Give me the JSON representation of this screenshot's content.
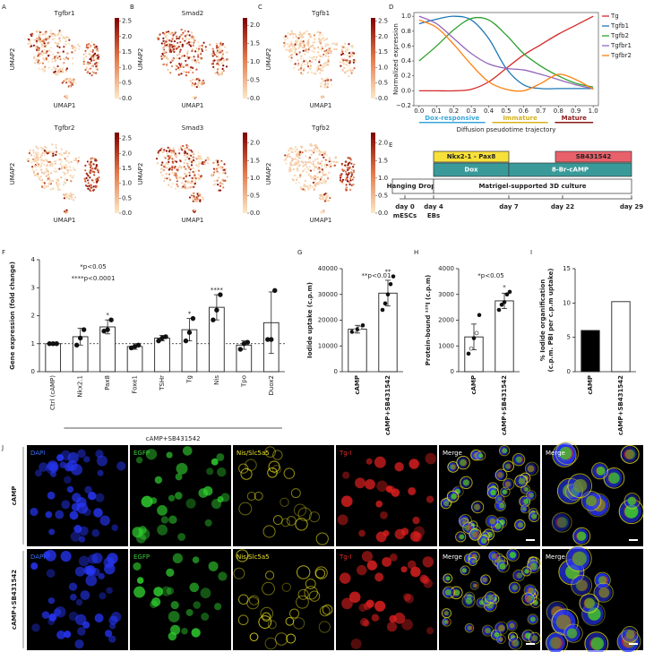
{
  "panel_labels": [
    "A",
    "B",
    "C",
    "D",
    "E",
    "F",
    "G",
    "H",
    "I",
    "J"
  ],
  "chart_data": [
    {
      "type": "embedding",
      "title": "Tgfbr1",
      "xlabel": "UMAP1",
      "ylabel": "UMAP2",
      "clim": [
        0,
        2.6
      ],
      "cticks": [
        {
          "value": 0,
          "label": "0.0"
        },
        0.5,
        {
          "value": 1,
          "label": "1.0"
        },
        1.5,
        {
          "value": 2,
          "label": "2.0"
        },
        2.5
      ]
    },
    {
      "type": "embedding",
      "title": "Smad2",
      "xlabel": "UMAP1",
      "ylabel": "UMAP2",
      "clim": [
        0,
        2.2
      ],
      "cticks": [
        {
          "value": 0,
          "label": "0.0"
        },
        0.5,
        {
          "value": 1,
          "label": "1.0"
        },
        1.5,
        {
          "value": 2,
          "label": "2.0"
        }
      ]
    },
    {
      "type": "embedding",
      "title": "Tgfb1",
      "xlabel": "UMAP1",
      "ylabel": "UMAP2",
      "clim": [
        0,
        2.6
      ],
      "cticks": [
        {
          "value": 0,
          "label": "0.0"
        },
        0.5,
        {
          "value": 1,
          "label": "1.0"
        },
        1.5,
        {
          "value": 2,
          "label": "2.0"
        },
        2.5
      ]
    },
    {
      "type": "embedding",
      "title": "Tgfbr2",
      "xlabel": "UMAP1",
      "ylabel": "UMAP2",
      "clim": [
        0,
        2.7
      ],
      "cticks": [
        {
          "value": 0,
          "label": "0.0"
        },
        0.5,
        {
          "value": 1,
          "label": "1.0"
        },
        1.5,
        {
          "value": 2,
          "label": "2.0"
        },
        2.5
      ]
    },
    {
      "type": "embedding",
      "title": "Smad3",
      "xlabel": "UMAP1",
      "ylabel": "UMAP2",
      "clim": [
        0,
        2.3
      ],
      "cticks": [
        {
          "value": 0,
          "label": "0.0"
        },
        0.5,
        {
          "value": 1,
          "label": "1.0"
        },
        1.5,
        {
          "value": 2,
          "label": "2.0"
        }
      ]
    },
    {
      "type": "embedding",
      "title": "Tgfb2",
      "xlabel": "UMAP1",
      "ylabel": "UMAP2",
      "clim": [
        0,
        2.3
      ],
      "cticks": [
        {
          "value": 0,
          "label": "0.0"
        },
        0.5,
        {
          "value": 1,
          "label": "1.0"
        },
        1.5,
        {
          "value": 2,
          "label": "2.0"
        }
      ]
    },
    {
      "type": "line",
      "xlabel": "Diffusion pseudotime trajectory",
      "ylabel": "Normalized expression",
      "x": [
        0,
        0.1,
        0.2,
        0.3,
        0.4,
        0.5,
        0.6,
        0.7,
        0.8,
        0.9,
        1.0
      ],
      "xlim": [
        -0.03,
        1.03
      ],
      "ylim": [
        -0.2,
        1.05
      ],
      "xticks": [
        {
          "value": 0,
          "label": "0.0"
        },
        0.1,
        0.2,
        0.3,
        0.4,
        0.5,
        0.6,
        0.7,
        0.8,
        0.9,
        {
          "value": 1,
          "label": "1.0"
        }
      ],
      "yticks": [
        {
          "value": -0.2,
          "label": "−0.2"
        },
        {
          "value": 0,
          "label": "0.0"
        },
        0.2,
        0.4,
        0.6,
        0.8,
        {
          "value": 1,
          "label": "1.0"
        }
      ],
      "series": [
        {
          "name": "Tg",
          "color": "#d62728",
          "values": [
            0.0,
            0.0,
            0.0,
            0.02,
            0.12,
            0.3,
            0.48,
            0.62,
            0.76,
            0.88,
            1.0
          ]
        },
        {
          "name": "Tgfb1",
          "color": "#1f77b4",
          "values": [
            0.9,
            0.96,
            1.0,
            0.95,
            0.7,
            0.3,
            0.08,
            0.03,
            0.03,
            0.03,
            0.03
          ]
        },
        {
          "name": "Tgfb2",
          "color": "#2ca02c",
          "values": [
            0.4,
            0.6,
            0.82,
            0.97,
            0.95,
            0.75,
            0.5,
            0.33,
            0.2,
            0.1,
            0.05
          ]
        },
        {
          "name": "Tgfbr1",
          "color": "#9467bd",
          "values": [
            1.0,
            0.9,
            0.7,
            0.5,
            0.36,
            0.3,
            0.28,
            0.22,
            0.15,
            0.08,
            0.03
          ]
        },
        {
          "name": "Tgfbr2",
          "color": "#ff7f0e",
          "values": [
            0.95,
            0.85,
            0.62,
            0.35,
            0.12,
            0.02,
            0.0,
            0.1,
            0.22,
            0.15,
            0.02
          ]
        }
      ],
      "phases": [
        {
          "name": "Dox-responsive",
          "color": "#3aa6d8",
          "x": [
            0,
            0.38
          ]
        },
        {
          "name": "Immature",
          "color": "#d4b21c",
          "x": [
            0.42,
            0.74
          ]
        },
        {
          "name": "Mature",
          "color": "#8b1a1a",
          "x": [
            0.78,
            1.0
          ]
        }
      ]
    },
    {
      "type": "bar",
      "ylabel": "Gene expression (fold change)",
      "categories": [
        "Ctrl (cAMP)",
        "Nkx2.1",
        "Pax8",
        "Foxe1",
        "TSHr",
        "Tg",
        "Nis",
        "Tpo",
        "Duox2"
      ],
      "values": [
        1.0,
        1.25,
        1.6,
        0.9,
        1.2,
        1.5,
        2.3,
        0.95,
        1.75
      ],
      "errors": [
        0.05,
        0.3,
        0.25,
        0.1,
        0.1,
        0.4,
        0.45,
        0.15,
        1.1
      ],
      "points": [
        [
          1,
          1,
          1
        ],
        [
          0.95,
          1.2,
          1.5
        ],
        [
          1.45,
          1.5,
          1.85
        ],
        [
          0.85,
          0.9,
          0.95
        ],
        [
          1.1,
          1.2,
          1.25
        ],
        [
          1.1,
          1.4,
          1.9
        ],
        [
          1.85,
          2.2,
          2.75
        ],
        [
          0.8,
          1.0,
          1.05
        ],
        [
          1.15,
          1.15,
          2.9
        ]
      ],
      "colors": [
        "#ffffff",
        "#ffffff",
        "#ffffff",
        "#ffffff",
        "#ffffff",
        "#ffffff",
        "#ffffff",
        "#ffffff",
        "#ffffff"
      ],
      "stars": [
        null,
        null,
        "*",
        null,
        null,
        "*",
        "****",
        null,
        null
      ],
      "notes": [
        "*p<0.05",
        "****p<0.0001"
      ],
      "refline": 1,
      "group_label": "cAMP+SB431542",
      "ylim": [
        0,
        4
      ],
      "yticks": [
        0,
        1,
        2,
        3,
        4
      ]
    },
    {
      "type": "bar",
      "ylabel": [
        "Iodide uptake (c.p.m)"
      ],
      "categories": [
        "cAMP",
        "cAMP+SB431542"
      ],
      "values": [
        16500,
        30500
      ],
      "errors": [
        1500,
        5000
      ],
      "points": [
        [
          15500,
          16000,
          16500,
          17000,
          18000
        ],
        [
          24000,
          26500,
          30000,
          34000,
          37000
        ]
      ],
      "colors": [
        "#ffffff",
        "#ffffff"
      ],
      "stars": [
        null,
        "**"
      ],
      "notes": [
        "**p<0.01"
      ],
      "ylim": [
        0,
        40000
      ],
      "yticks": [
        0,
        10000,
        20000,
        30000,
        40000
      ]
    },
    {
      "type": "bar",
      "ylabel": [
        "Protein-bound ¹²⁵I (c.p.m)"
      ],
      "categories": [
        "cAMP",
        "cAMP+SB431542"
      ],
      "values": [
        1350,
        2750
      ],
      "errors": [
        500,
        300
      ],
      "points": [
        [
          700,
          900,
          1300,
          1500,
          2200
        ],
        [
          2400,
          2600,
          2700,
          3000,
          3100
        ]
      ],
      "colors": [
        "#ffffff",
        "#ffffff"
      ],
      "stars": [
        null,
        "*"
      ],
      "notes": [
        "*p<0.05"
      ],
      "ylim": [
        0,
        4000
      ],
      "yticks": [
        0,
        1000,
        2000,
        3000,
        4000
      ]
    },
    {
      "type": "bar",
      "ylabel": [
        "% Iodide organification",
        "(c.p.m. PBI per c.p.m uptake)"
      ],
      "categories": [
        "cAMP",
        "cAMP+SB431542"
      ],
      "values": [
        6.0,
        10.2
      ],
      "colors": [
        "#000000",
        "#ffffff"
      ],
      "ylim": [
        0,
        15
      ],
      "yticks": [
        0,
        5,
        10,
        15
      ]
    }
  ],
  "timeline": {
    "boxes": [
      "Nkx2-1 - Pax8",
      "SB431542",
      "Dox",
      "8-Br-cAMP",
      "Hanging Drops",
      "Matrigel-supported 3D culture"
    ],
    "days": [
      "day 0",
      "day 4",
      "day 7",
      "day 22",
      "day 29"
    ],
    "day_notes": [
      "mESCs",
      "EBs"
    ]
  },
  "microscopy": {
    "rows": [
      "cAMP",
      "cAMP+SB431542"
    ],
    "columns": [
      "DAPI",
      "EGFP",
      "Nis/Slc5a5",
      "Tg-I",
      "Merge",
      "Merge"
    ],
    "column_colors": [
      "#3b6cf0",
      "#3ccf3c",
      "#e8e02a",
      "#e8302a",
      "#ffffff",
      "#ffffff"
    ]
  }
}
